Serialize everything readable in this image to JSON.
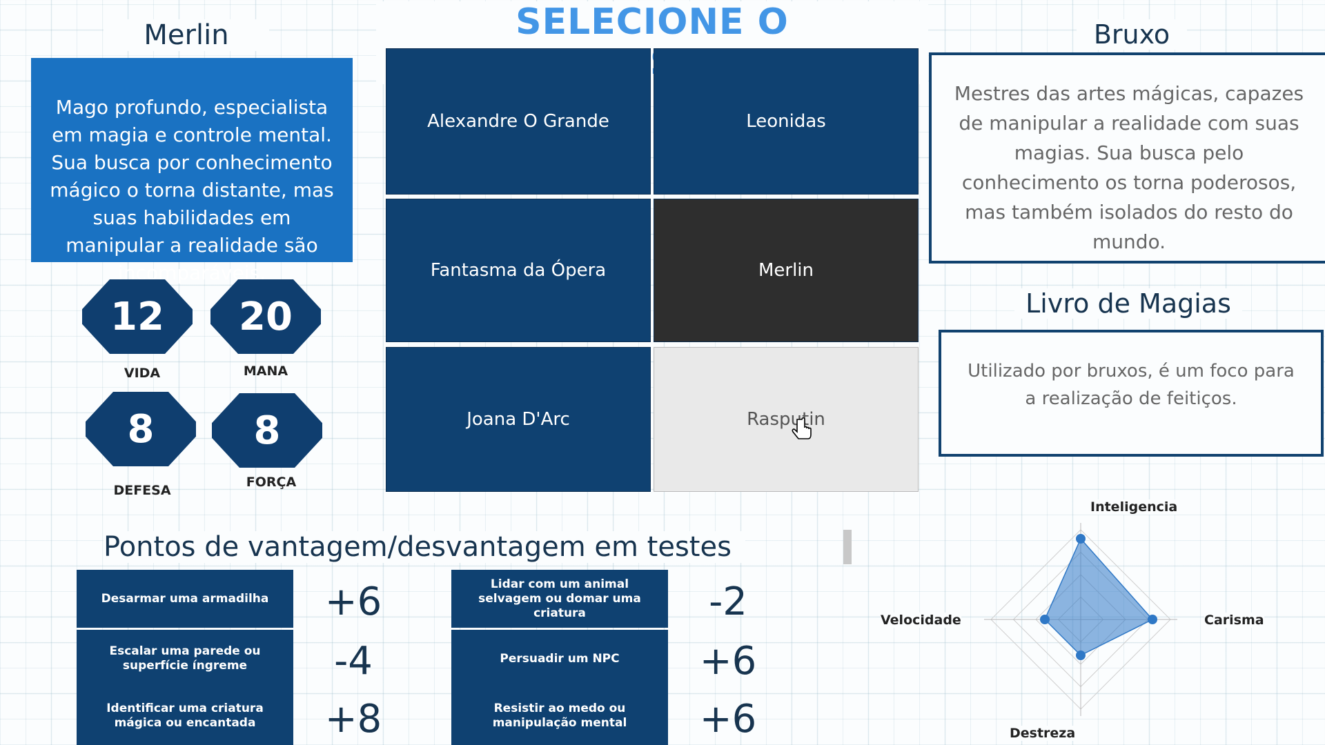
{
  "header": {
    "title": "SELECIONE O PERONSAGEM"
  },
  "character": {
    "name": "Merlin",
    "description": "Mago profundo, especialista em magia e controle mental. Sua busca por conhecimento mágico o torna distante, mas suas habilidades em manipular a realidade são incomparáveis.",
    "stats": [
      {
        "value": "12",
        "label": "VIDA"
      },
      {
        "value": "20",
        "label": "MANA"
      },
      {
        "value": "8",
        "label": "DEFESA"
      },
      {
        "value": "8",
        "label": "FORÇA"
      }
    ]
  },
  "selector": {
    "cells": [
      {
        "label": "Alexandre O Grande",
        "state": "normal"
      },
      {
        "label": "Leonidas",
        "state": "normal"
      },
      {
        "label": "Fantasma da Ópera",
        "state": "normal"
      },
      {
        "label": "Merlin",
        "state": "selected"
      },
      {
        "label": "Joana D'Arc",
        "state": "normal"
      },
      {
        "label": "Rasputin",
        "state": "hover"
      }
    ]
  },
  "class_info": {
    "title": "Bruxo",
    "description": "Mestres das artes mágicas, capazes de manipular a realidade com suas magias. Sua busca pelo conhecimento os torna poderosos, mas também isolados do resto do mundo."
  },
  "item_info": {
    "title": "Livro de Magias",
    "description": "Utilizado por bruxos, é um foco para a realização de feitiços."
  },
  "tests": {
    "title": "Pontos de vantagem/desvantagem em testes",
    "left": [
      {
        "label": "Desarmar uma armadilha",
        "score": "+6"
      },
      {
        "label": "Escalar uma parede ou superfície íngreme",
        "score": "-4"
      },
      {
        "label": "Identificar uma criatura mágica ou encantada",
        "score": "+8"
      }
    ],
    "right": [
      {
        "label": "Lidar com um animal selvagem ou domar uma criatura",
        "score": "-2"
      },
      {
        "label": "Persuadir um NPC",
        "score": "+6"
      },
      {
        "label": "Resistir ao medo ou manipulação mental",
        "score": "+6"
      }
    ]
  },
  "chart_data": {
    "type": "radar",
    "axes": [
      "Inteligencia",
      "Carisma",
      "Destreza",
      "Velocidade"
    ],
    "values": [
      9,
      8,
      4,
      4
    ],
    "max": 10,
    "color": "#2f78c6"
  },
  "colors": {
    "accent": "#4396e6",
    "navy": "#0f4171",
    "selected": "#2e2e2e",
    "description_bg": "#1a72c2"
  }
}
